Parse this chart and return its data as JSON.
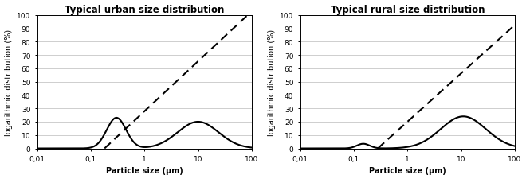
{
  "title_urban": "Typical urban size distribution",
  "title_rural": "Typical rural size distribution",
  "xlabel": "Particle size (μm)",
  "ylabel": "logarithmic distribution (%)",
  "xlim": [
    0.01,
    100
  ],
  "ylim": [
    0,
    100
  ],
  "yticks": [
    0,
    10,
    20,
    30,
    40,
    50,
    60,
    70,
    80,
    90,
    100
  ],
  "xtick_labels": [
    "0,01",
    "0,1",
    "1",
    "10",
    "100"
  ],
  "xtick_positions": [
    0.01,
    0.1,
    1,
    10,
    100
  ],
  "line_color": "#000000",
  "bg_color": "#ffffff",
  "title_fontsize": 8.5,
  "label_fontsize": 7.0,
  "tick_fontsize": 6.5,
  "urban_dashed_x0": 0.18,
  "urban_dashed_x1": 55,
  "urban_dashed_y1": 93,
  "rural_dashed_x0": 0.28,
  "rural_dashed_x1": 55,
  "rural_dashed_y1": 83
}
